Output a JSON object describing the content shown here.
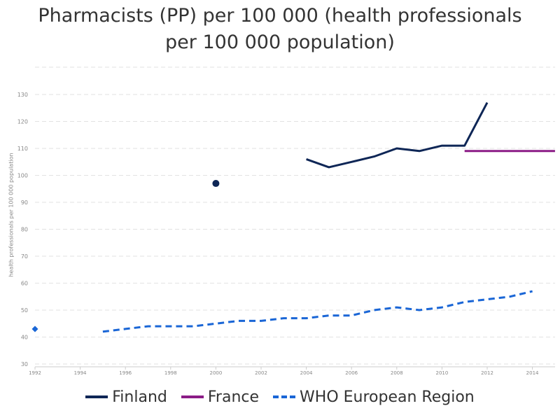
{
  "title_line1": "Pharmacists (PP) per 100 000 (health professionals",
  "title_line2": "per 100 000 population)",
  "chart_data": {
    "type": "line",
    "title": "Pharmacists (PP) per 100 000 (health professionals per 100 000 population)",
    "ylabel": "health professionals per 100 000 population",
    "xlabel": "",
    "xlim": [
      1992,
      2015
    ],
    "ylim": [
      30,
      130
    ],
    "x_ticks": [
      1992,
      1994,
      1996,
      1998,
      2000,
      2002,
      2004,
      2006,
      2008,
      2010,
      2012,
      2014
    ],
    "y_ticks": [
      30,
      40,
      50,
      60,
      70,
      80,
      90,
      100,
      110,
      120,
      130
    ],
    "grid": "horizontal dashed",
    "legend_position": "bottom",
    "series": [
      {
        "name": "Finland",
        "color": "#0e2656",
        "style": "solid",
        "points": [
          [
            2000,
            97
          ],
          [
            2004,
            106
          ],
          [
            2005,
            103
          ],
          [
            2006,
            105
          ],
          [
            2007,
            107
          ],
          [
            2008,
            110
          ],
          [
            2009,
            109
          ],
          [
            2010,
            111
          ],
          [
            2011,
            111
          ],
          [
            2012,
            127
          ]
        ],
        "segments_break_after": [
          2000
        ]
      },
      {
        "name": "France",
        "color": "#8b1c86",
        "style": "solid",
        "points": [
          [
            2011,
            109
          ],
          [
            2015,
            109
          ]
        ]
      },
      {
        "name": "WHO European Region",
        "color": "#1a66d6",
        "style": "dashed",
        "points": [
          [
            1992,
            43
          ],
          [
            1995,
            42
          ],
          [
            1996,
            43
          ],
          [
            1997,
            44
          ],
          [
            1998,
            44
          ],
          [
            1999,
            44
          ],
          [
            2000,
            45
          ],
          [
            2001,
            46
          ],
          [
            2002,
            46
          ],
          [
            2003,
            47
          ],
          [
            2004,
            47
          ],
          [
            2005,
            48
          ],
          [
            2006,
            48
          ],
          [
            2007,
            50
          ],
          [
            2008,
            51
          ],
          [
            2009,
            50
          ],
          [
            2010,
            51
          ],
          [
            2011,
            53
          ],
          [
            2012,
            54
          ],
          [
            2013,
            55
          ],
          [
            2014,
            57
          ]
        ],
        "segments_break_after": [
          1992
        ]
      }
    ]
  }
}
